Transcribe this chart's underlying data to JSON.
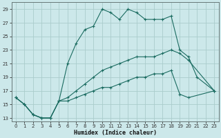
{
  "xlabel": "Humidex (Indice chaleur)",
  "ylabel": "",
  "bg_color": "#cce8ea",
  "grid_color": "#aacccc",
  "line_color": "#1a6b60",
  "xlim": [
    -0.5,
    23.5
  ],
  "ylim": [
    12.5,
    30.0
  ],
  "xticks": [
    0,
    1,
    2,
    3,
    4,
    5,
    6,
    7,
    8,
    9,
    10,
    11,
    12,
    13,
    14,
    15,
    16,
    17,
    18,
    19,
    20,
    21,
    22,
    23
  ],
  "yticks": [
    13,
    15,
    17,
    19,
    21,
    23,
    25,
    27,
    29
  ],
  "line1_x": [
    0,
    1,
    2,
    3,
    4,
    5,
    6,
    7,
    8,
    9,
    10,
    11,
    12,
    13,
    14,
    15,
    16,
    17,
    18,
    19,
    20,
    21,
    23
  ],
  "line1_y": [
    16,
    15,
    13.5,
    13,
    13,
    15.5,
    21,
    24,
    26,
    26.5,
    29,
    28.5,
    27.5,
    29,
    28.5,
    27.5,
    27.5,
    27.5,
    28,
    23,
    22,
    19,
    17
  ],
  "line2_x": [
    0,
    1,
    2,
    3,
    4,
    5,
    6,
    7,
    8,
    9,
    10,
    11,
    12,
    13,
    14,
    15,
    16,
    17,
    18,
    19,
    20,
    23
  ],
  "line2_y": [
    16,
    15,
    13.5,
    13,
    13,
    15.5,
    16,
    17,
    18,
    19,
    20,
    20.5,
    21,
    21.5,
    22,
    22,
    22,
    22.5,
    23,
    22.5,
    21.5,
    17
  ],
  "line3_x": [
    0,
    1,
    2,
    3,
    4,
    5,
    6,
    7,
    8,
    9,
    10,
    11,
    12,
    13,
    14,
    15,
    16,
    17,
    18,
    19,
    20,
    23
  ],
  "line3_y": [
    16,
    15,
    13.5,
    13,
    13,
    15.5,
    15.5,
    16,
    16.5,
    17,
    17.5,
    17.5,
    18,
    18.5,
    19,
    19,
    19.5,
    19.5,
    20,
    16.5,
    16,
    17
  ]
}
